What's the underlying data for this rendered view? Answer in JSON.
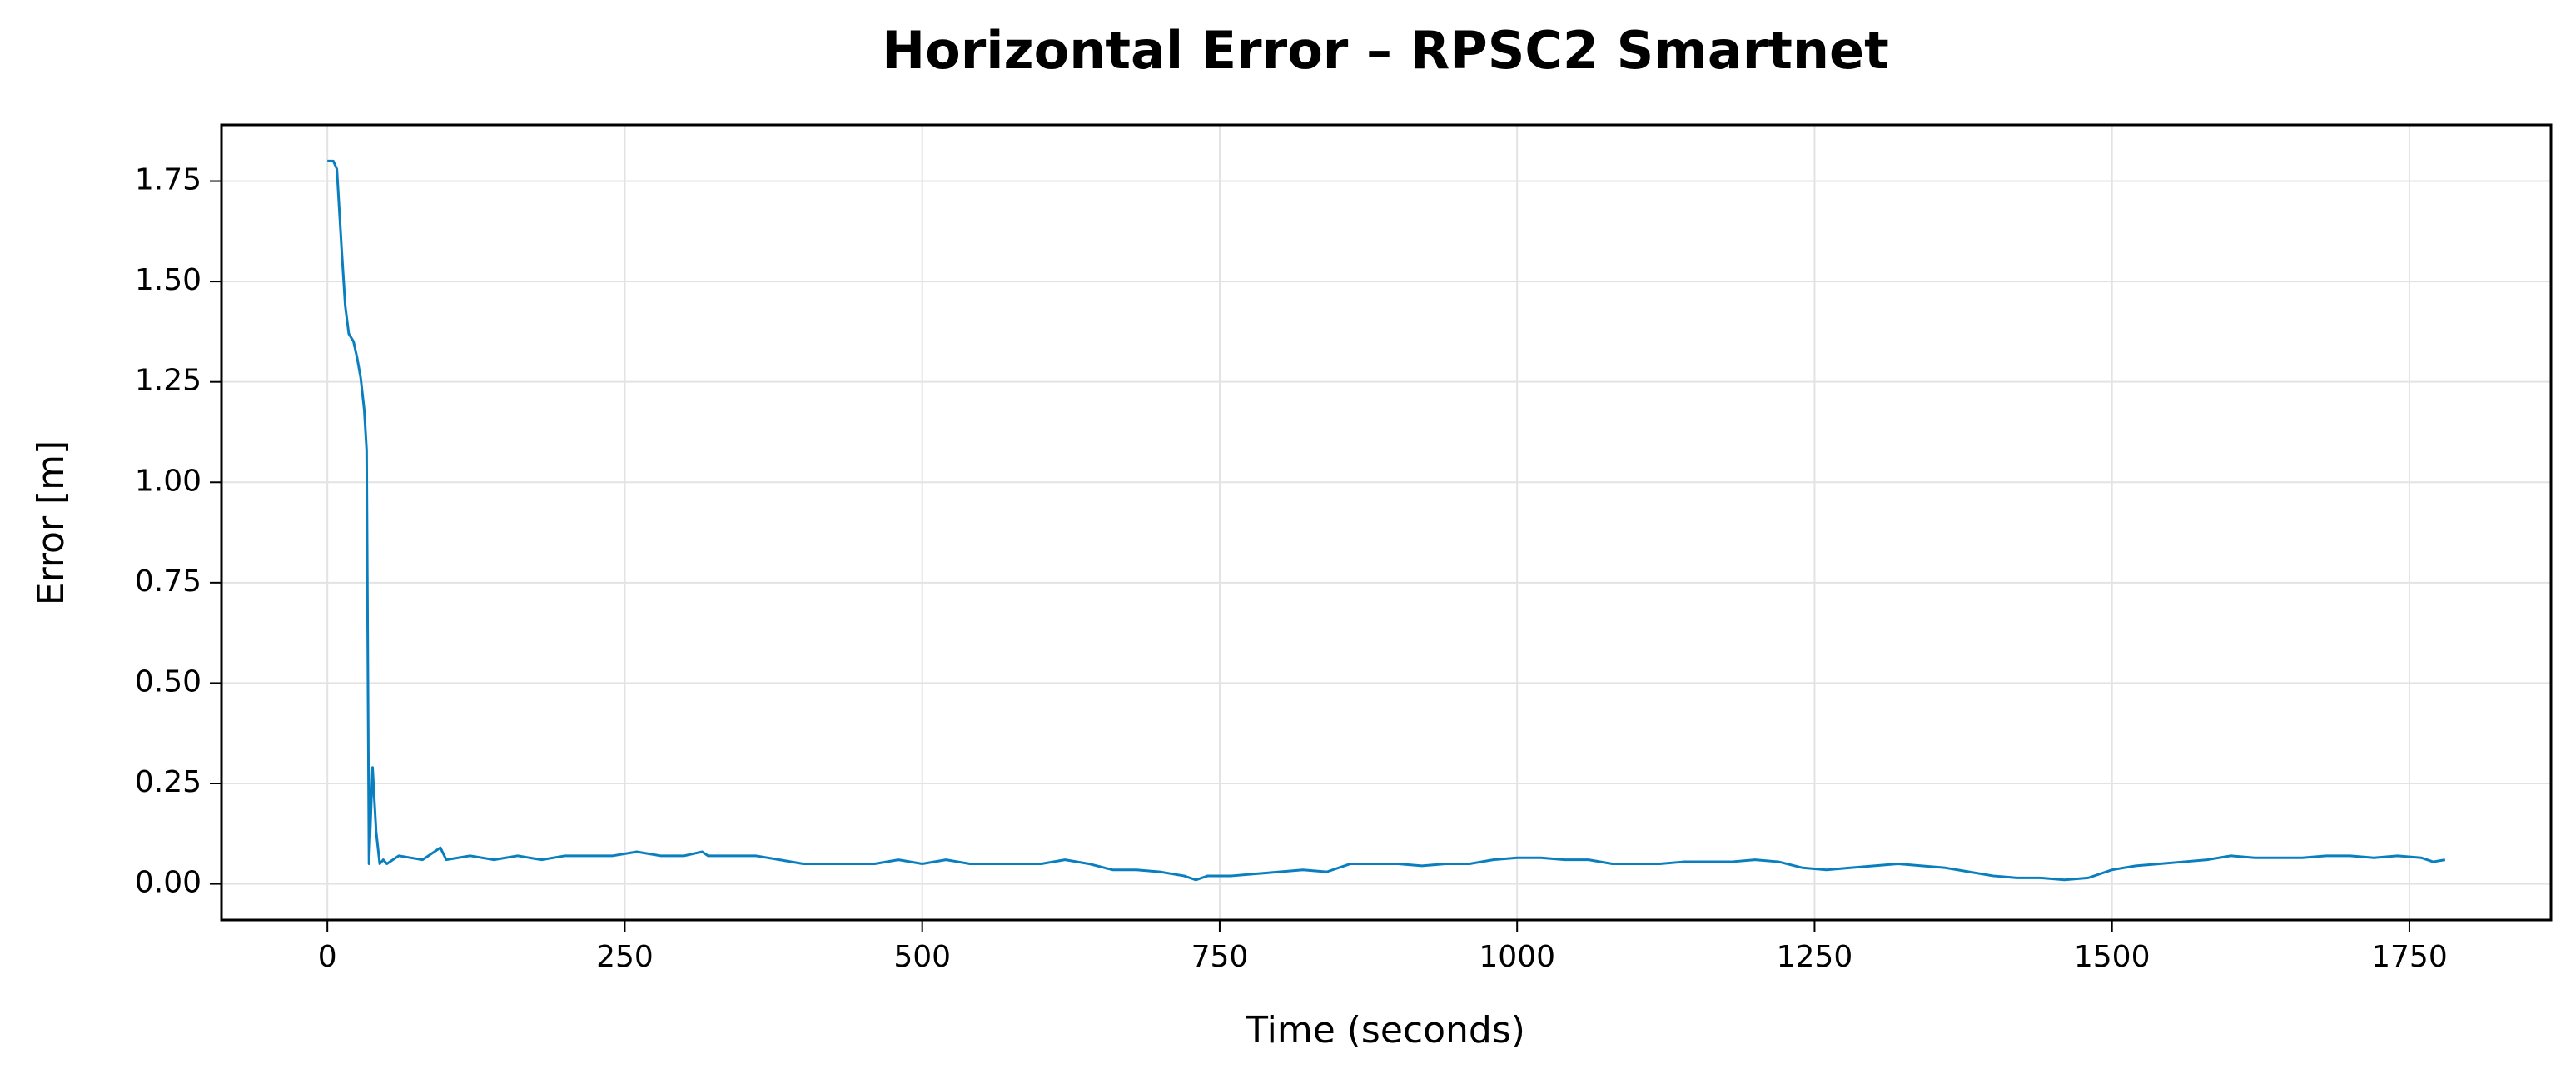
{
  "chart_data": {
    "type": "line",
    "title": "Horizontal Error – RPSC2 Smartnet",
    "x_label": "Time (seconds)",
    "y_label": "Error [m]",
    "color": "#0a7fc0",
    "grid": true,
    "xlim": [
      -89,
      1869
    ],
    "ylim": [
      -0.09,
      1.89
    ],
    "xticks": [
      0,
      250,
      500,
      750,
      1000,
      1250,
      1500,
      1750
    ],
    "yticks": [
      {
        "value": 0,
        "label": "0.00"
      },
      0.25,
      {
        "value": 0.5,
        "label": "0.50"
      },
      0.75,
      {
        "value": 1,
        "label": "1.00"
      },
      1.25,
      {
        "value": 1.5,
        "label": "1.50"
      },
      1.75
    ],
    "x": [
      0,
      5,
      8,
      12,
      15,
      18,
      22,
      25,
      28,
      31,
      33,
      35,
      38,
      41,
      44,
      47,
      50,
      60,
      80,
      95,
      100,
      120,
      140,
      160,
      180,
      200,
      220,
      240,
      260,
      280,
      300,
      315,
      320,
      340,
      360,
      380,
      400,
      420,
      440,
      460,
      480,
      500,
      520,
      540,
      560,
      580,
      600,
      620,
      640,
      660,
      680,
      700,
      720,
      730,
      740,
      760,
      780,
      800,
      820,
      840,
      860,
      880,
      900,
      920,
      940,
      960,
      980,
      1000,
      1020,
      1040,
      1060,
      1080,
      1100,
      1120,
      1140,
      1160,
      1180,
      1200,
      1220,
      1240,
      1260,
      1280,
      1300,
      1320,
      1340,
      1360,
      1380,
      1400,
      1420,
      1440,
      1460,
      1480,
      1500,
      1520,
      1540,
      1560,
      1580,
      1600,
      1620,
      1640,
      1660,
      1680,
      1700,
      1720,
      1740,
      1760,
      1770,
      1780
    ],
    "values": [
      1.8,
      1.8,
      1.78,
      1.58,
      1.44,
      1.37,
      1.35,
      1.31,
      1.26,
      1.18,
      1.08,
      0.05,
      0.29,
      0.13,
      0.05,
      0.06,
      0.05,
      0.07,
      0.06,
      0.09,
      0.06,
      0.07,
      0.06,
      0.07,
      0.06,
      0.07,
      0.07,
      0.07,
      0.08,
      0.07,
      0.07,
      0.08,
      0.07,
      0.07,
      0.07,
      0.06,
      0.05,
      0.05,
      0.05,
      0.05,
      0.06,
      0.05,
      0.06,
      0.05,
      0.05,
      0.05,
      0.05,
      0.06,
      0.05,
      0.035,
      0.035,
      0.03,
      0.02,
      0.01,
      0.02,
      0.02,
      0.025,
      0.03,
      0.035,
      0.03,
      0.05,
      0.05,
      0.05,
      0.045,
      0.05,
      0.05,
      0.06,
      0.065,
      0.065,
      0.06,
      0.06,
      0.05,
      0.05,
      0.05,
      0.055,
      0.055,
      0.055,
      0.06,
      0.055,
      0.04,
      0.035,
      0.04,
      0.045,
      0.05,
      0.045,
      0.04,
      0.03,
      0.02,
      0.015,
      0.015,
      0.01,
      0.015,
      0.035,
      0.045,
      0.05,
      0.055,
      0.06,
      0.07,
      0.065,
      0.065,
      0.065,
      0.07,
      0.07,
      0.065,
      0.07,
      0.065,
      0.055,
      0.06
    ]
  }
}
